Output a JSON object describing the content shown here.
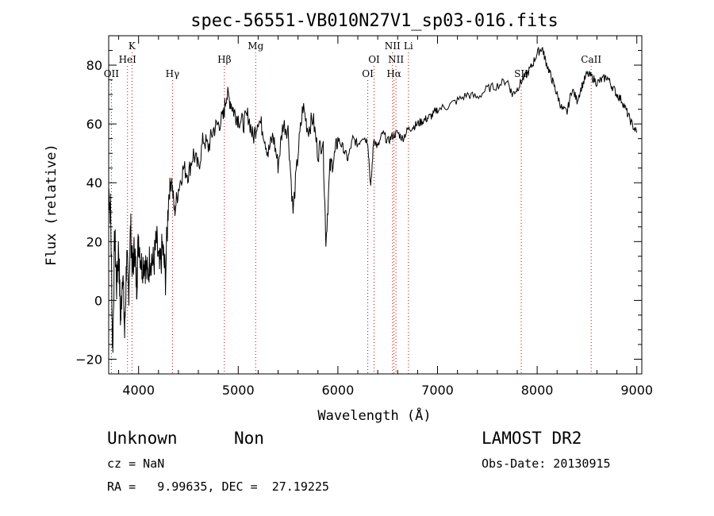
{
  "chart_data": {
    "type": "line",
    "title": "spec-56551-VB010N27V1_sp03-016.fits",
    "xlabel": "Wavelength (Å)",
    "ylabel": "Flux (relative)",
    "xlim": [
      3700,
      9050
    ],
    "ylim": [
      -25,
      90
    ],
    "xticks": [
      4000,
      5000,
      6000,
      7000,
      8000,
      9000
    ],
    "yticks": [
      -20,
      0,
      20,
      40,
      60,
      80
    ],
    "grid": false,
    "series": [
      {
        "x": [
          3700,
          3720,
          3740,
          3760,
          3780,
          3800,
          3820,
          3840,
          3860,
          3880,
          3900,
          3920,
          3940,
          3960,
          3980,
          4000,
          4030,
          4060,
          4090,
          4120,
          4150,
          4180,
          4210,
          4240,
          4270,
          4300,
          4330,
          4360,
          4400,
          4450,
          4500,
          4550,
          4600,
          4650,
          4700,
          4750,
          4800,
          4850,
          4880,
          4920,
          4960,
          5000,
          5050,
          5100,
          5150,
          5200,
          5250,
          5300,
          5350,
          5400,
          5450,
          5500,
          5550,
          5600,
          5650,
          5700,
          5750,
          5800,
          5850,
          5880,
          5920,
          5960,
          6000,
          6050,
          6100,
          6150,
          6200,
          6250,
          6300,
          6330,
          6360,
          6400,
          6450,
          6500,
          6550,
          6600,
          6650,
          6700,
          6750,
          6800,
          6850,
          6900,
          6950,
          7000,
          7100,
          7200,
          7300,
          7400,
          7500,
          7600,
          7700,
          7750,
          7800,
          7850,
          7900,
          7950,
          8000,
          8050,
          8080,
          8120,
          8160,
          8200,
          8250,
          8300,
          8350,
          8400,
          8450,
          8500,
          8550,
          8600,
          8650,
          8700,
          8750,
          8800,
          8850,
          8900,
          8950,
          9000
        ],
        "y": [
          38,
          30,
          -18,
          22,
          5,
          18,
          -8,
          12,
          -12,
          15,
          2,
          25,
          10,
          18,
          5,
          22,
          12,
          14,
          8,
          16,
          12,
          20,
          10,
          18,
          8,
          35,
          42,
          30,
          38,
          45,
          43,
          50,
          45,
          55,
          52,
          58,
          60,
          62,
          70,
          68,
          64,
          62,
          60,
          63,
          55,
          62,
          58,
          50,
          56,
          46,
          60,
          58,
          30,
          50,
          66,
          58,
          62,
          50,
          55,
          20,
          45,
          48,
          55,
          52,
          48,
          55,
          53,
          56,
          54,
          38,
          55,
          52,
          57,
          54,
          56,
          57,
          55,
          58,
          59,
          60,
          61,
          62,
          63,
          65,
          66,
          68,
          70,
          69,
          72,
          73,
          75,
          70,
          72,
          75,
          77,
          80,
          84,
          86,
          82,
          78,
          74,
          70,
          65,
          64,
          72,
          68,
          73,
          77,
          76,
          74,
          75,
          76,
          73,
          70,
          68,
          64,
          60,
          57
        ],
        "color": "#000000"
      }
    ],
    "lines": [
      {
        "label": "OII",
        "wl": 3727,
        "row": 3
      },
      {
        "label": "K",
        "wl": 3934,
        "row": 1
      },
      {
        "label": "HeI",
        "wl": 3889,
        "row": 2
      },
      {
        "label": "Hγ",
        "wl": 4340,
        "row": 3
      },
      {
        "label": "Hβ",
        "wl": 4861,
        "row": 2
      },
      {
        "label": "Mg",
        "wl": 5175,
        "row": 1
      },
      {
        "label": "OI",
        "wl": 6300,
        "row": 3
      },
      {
        "label": "OI",
        "wl": 6363,
        "row": 2
      },
      {
        "label": "NII",
        "wl": 6548,
        "row": 1
      },
      {
        "label": "NII",
        "wl": 6583,
        "row": 2
      },
      {
        "label": "Hα",
        "wl": 6563,
        "row": 3
      },
      {
        "label": "Li",
        "wl": 6708,
        "row": 1
      },
      {
        "label": "SII",
        "wl": 7840,
        "row": 3
      },
      {
        "label": "CaII",
        "wl": 8542,
        "row": 2
      }
    ]
  },
  "info": {
    "class": "Unknown",
    "subclass": "Non",
    "cz": "cz = NaN",
    "radec": "RA =   9.99635, DEC =  27.19225",
    "survey": "LAMOST DR2",
    "obsdate": "Obs-Date: 20130915"
  }
}
